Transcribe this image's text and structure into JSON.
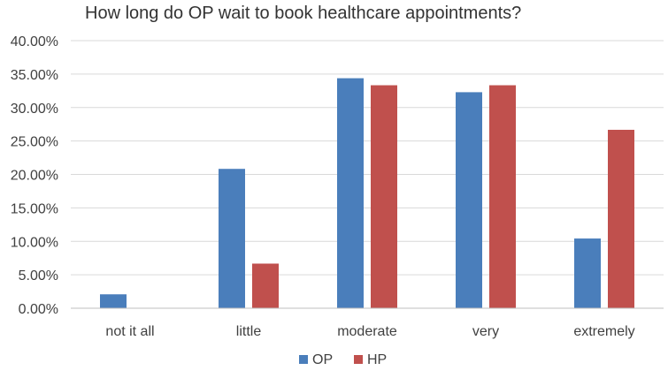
{
  "chart_data": {
    "type": "bar",
    "title": "How long do OP wait to book healthcare appointments?",
    "categories": [
      "not it all",
      "little",
      "moderate",
      "very",
      "extremely"
    ],
    "series": [
      {
        "name": "OP",
        "color": "#4a7ebb",
        "values": [
          2.08,
          20.83,
          34.38,
          32.29,
          10.42
        ]
      },
      {
        "name": "HP",
        "color": "#c0504d",
        "values": [
          0.0,
          6.67,
          33.33,
          33.33,
          26.67
        ]
      }
    ],
    "ylim": [
      0,
      40
    ],
    "yticks": [
      "0.00%",
      "5.00%",
      "10.00%",
      "15.00%",
      "20.00%",
      "25.00%",
      "30.00%",
      "35.00%",
      "40.00%"
    ],
    "grid": true,
    "legend_position": "bottom"
  }
}
